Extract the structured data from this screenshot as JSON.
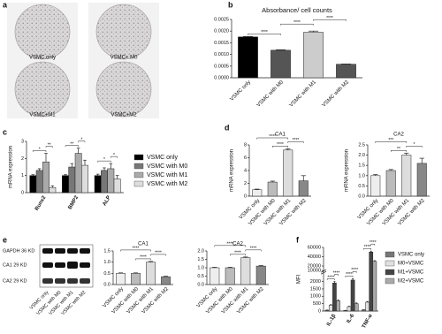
{
  "chart_data": [
    {
      "type": "image-grid",
      "panel": "a",
      "labels": [
        "VSMC only",
        "VSMC+ M0",
        "VSMC+M1",
        "VSMC+M2"
      ]
    },
    {
      "type": "bar",
      "panel": "b",
      "title": "Absorbance/ cell counts",
      "categories": [
        "VSMC only",
        "VSMC with M0",
        "VSMC with M1",
        "VSMC with M2"
      ],
      "values": [
        0.00175,
        0.00118,
        0.00195,
        0.00058
      ],
      "errors": [
        2e-05,
        2e-05,
        5e-05,
        1e-05
      ],
      "colors": [
        "#000000",
        "#555555",
        "#cccccc",
        "#555555"
      ],
      "ylim": [
        0,
        0.0025
      ],
      "yticks": [
        {
          "value": 0,
          "label": "0.0000"
        },
        0.0005,
        {
          "value": 0.001,
          "label": "0.0010"
        },
        0.0015,
        {
          "value": 0.002,
          "label": "0.0020"
        },
        0.0025
      ],
      "significance": [
        {
          "pair": [
            0,
            1
          ],
          "label": "****"
        },
        {
          "pair": [
            1,
            2
          ],
          "label": "****"
        },
        {
          "pair": [
            2,
            3
          ],
          "label": "****"
        }
      ]
    },
    {
      "type": "grouped-bar",
      "panel": "c",
      "ylabel": "mRNA expression",
      "categories": [
        "Runx2",
        "BMP2",
        "ALP"
      ],
      "series": [
        {
          "name": "VSMC only",
          "color": "#000000",
          "values": [
            1.0,
            1.0,
            1.0
          ],
          "errors": [
            0.05,
            0.05,
            0.08
          ]
        },
        {
          "name": "VSMC with M0",
          "color": "#777777",
          "values": [
            1.3,
            1.5,
            1.3
          ],
          "errors": [
            0.1,
            0.2,
            0.15
          ]
        },
        {
          "name": "VSMC with M1",
          "color": "#aaaaaa",
          "values": [
            1.8,
            2.3,
            1.4
          ],
          "errors": [
            0.5,
            0.3,
            0.3
          ]
        },
        {
          "name": "VSMC with M2",
          "color": "#dddddd",
          "values": [
            0.3,
            1.6,
            0.8
          ],
          "errors": [
            0.1,
            0.3,
            0.2
          ]
        }
      ],
      "ylim": [
        0,
        3
      ],
      "yticks": [
        0,
        1,
        2,
        3
      ],
      "legend": "right",
      "significance": [
        {
          "category": 0,
          "pair": [
            0,
            2
          ],
          "label": "*"
        },
        {
          "category": 0,
          "pair": [
            2,
            3
          ],
          "label": "**"
        },
        {
          "category": 1,
          "pair": [
            0,
            2
          ],
          "label": "**"
        },
        {
          "category": 1,
          "pair": [
            2,
            3
          ],
          "label": "*"
        },
        {
          "category": 2,
          "pair": [
            0,
            2
          ],
          "label": "*"
        },
        {
          "category": 2,
          "pair": [
            2,
            3
          ],
          "label": "*"
        }
      ]
    },
    {
      "type": "bar",
      "panel": "d",
      "title": "CA1",
      "ylabel": "mRNA expression",
      "categories": [
        "VSMC only",
        "VSMC with M0",
        "VSMC with M1",
        "VSMC with M2"
      ],
      "values": [
        1.0,
        2.2,
        7.2,
        2.4
      ],
      "errors": [
        0.1,
        0.15,
        0.2,
        0.8
      ],
      "colors": [
        "#eeeeee",
        "#bbbbbb",
        "#dddddd",
        "#888888"
      ],
      "ylim": [
        0,
        8
      ],
      "yticks": [
        0,
        2,
        4,
        6,
        8
      ],
      "significance": [
        {
          "pair": [
            1,
            2
          ],
          "label": "****"
        },
        {
          "pair": [
            2,
            3
          ],
          "label": "****"
        },
        {
          "pair": [
            0,
            2
          ],
          "label": "****"
        }
      ]
    },
    {
      "type": "bar",
      "title": "CA2",
      "ylabel": "mRNA expression",
      "categories": [
        "VSMC only",
        "VSMC with M0",
        "VSMC with M1",
        "VSMC with M2"
      ],
      "values": [
        1.0,
        1.25,
        2.0,
        1.6
      ],
      "errors": [
        0.05,
        0.05,
        0.1,
        0.25
      ],
      "colors": [
        "#eeeeee",
        "#bbbbbb",
        "#dddddd",
        "#888888"
      ],
      "ylim": [
        0,
        2.5
      ],
      "yticks": [
        {
          "value": 0,
          "label": "0.0"
        },
        0.5,
        {
          "value": 1,
          "label": "1.0"
        },
        1.5,
        {
          "value": 2,
          "label": "2.0"
        },
        2.5
      ],
      "significance": [
        {
          "pair": [
            1,
            2
          ],
          "label": "**"
        },
        {
          "pair": [
            2,
            3
          ],
          "label": "*"
        },
        {
          "pair": [
            0,
            2
          ],
          "label": "***"
        }
      ]
    },
    {
      "type": "blot",
      "panel": "e",
      "bands": [
        "GAPDH 36 KD",
        "CA1 29 KD",
        "CA2 29 KD"
      ],
      "lanes": [
        "VSMC only",
        "VSMC with M0",
        "VSMC with M1",
        "VSMC with M2"
      ]
    },
    {
      "type": "bar",
      "title": "CA1",
      "categories": [
        "VSMC only",
        "VSMC with M0",
        "VSMC with M1",
        "VSMC with M2"
      ],
      "values": [
        0.5,
        0.5,
        1.0,
        0.35
      ],
      "errors": [
        0.02,
        0.02,
        0.03,
        0.02
      ],
      "colors": [
        "#eeeeee",
        "#bbbbbb",
        "#dddddd",
        "#888888"
      ],
      "ylim": [
        0,
        1.5
      ],
      "yticks": [
        {
          "value": 0,
          "label": "0.0"
        },
        0.5,
        {
          "value": 1,
          "label": "1.0"
        },
        1.5
      ],
      "significance": [
        {
          "pair": [
            1,
            2
          ],
          "label": "****"
        },
        {
          "pair": [
            2,
            3
          ],
          "label": "****"
        },
        {
          "pair": [
            0,
            2
          ],
          "label": "****"
        }
      ]
    },
    {
      "type": "bar",
      "title": "CA2",
      "categories": [
        "VSMC only",
        "VSMC with M0",
        "VSMC with M1",
        "VSMC with M2"
      ],
      "values": [
        1.0,
        1.0,
        1.6,
        1.1
      ],
      "errors": [
        0.03,
        0.03,
        0.04,
        0.03
      ],
      "colors": [
        "#eeeeee",
        "#bbbbbb",
        "#dddddd",
        "#888888"
      ],
      "ylim": [
        0,
        2
      ],
      "yticks": [
        {
          "value": 0,
          "label": "0.0"
        },
        0.5,
        {
          "value": 1,
          "label": "1.0"
        },
        1.5,
        {
          "value": 2,
          "label": "2.0"
        }
      ],
      "significance": [
        {
          "pair": [
            1,
            2
          ],
          "label": "****"
        },
        {
          "pair": [
            2,
            3
          ],
          "label": "****"
        },
        {
          "pair": [
            0,
            2
          ],
          "label": "****"
        }
      ]
    },
    {
      "type": "grouped-bar",
      "panel": "f",
      "ylabel": "MFI",
      "categories": [
        "IL-1β",
        "IL-6",
        "TNF-α"
      ],
      "series": [
        {
          "name": "VSMC only",
          "color": "#777777",
          "values": [
            60,
            40,
            80
          ],
          "errors": [
            10,
            8,
            10
          ]
        },
        {
          "name": "M0+VSMC",
          "color": "#e0e0e0",
          "values": [
            400,
            300,
            600
          ],
          "errors": [
            40,
            30,
            50
          ]
        },
        {
          "name": "M1+VSMC",
          "color": "#444444",
          "values": [
            1900,
            2100,
            50000
          ],
          "errors": [
            100,
            100,
            2000
          ]
        },
        {
          "name": "M2+VSMC",
          "color": "#aaaaaa",
          "values": [
            700,
            500,
            30000
          ],
          "errors": [
            60,
            50,
            1500
          ]
        }
      ],
      "ylim": [
        0,
        60000
      ],
      "ybreak": [
        2500,
        10000
      ],
      "yticks": [
        0,
        500,
        1000,
        1500,
        2000,
        10000,
        20000,
        40000,
        60000
      ],
      "legend": "right",
      "significance": [
        {
          "category": 0,
          "pair": [
            0,
            2
          ],
          "label": "****"
        },
        {
          "category": 0,
          "pair": [
            2,
            3
          ],
          "label": "****"
        },
        {
          "category": 1,
          "pair": [
            0,
            2
          ],
          "label": "****"
        },
        {
          "category": 1,
          "pair": [
            2,
            3
          ],
          "label": "****"
        },
        {
          "category": 2,
          "pair": [
            0,
            2
          ],
          "label": "****"
        },
        {
          "category": 2,
          "pair": [
            2,
            3
          ],
          "label": "****"
        }
      ]
    }
  ]
}
